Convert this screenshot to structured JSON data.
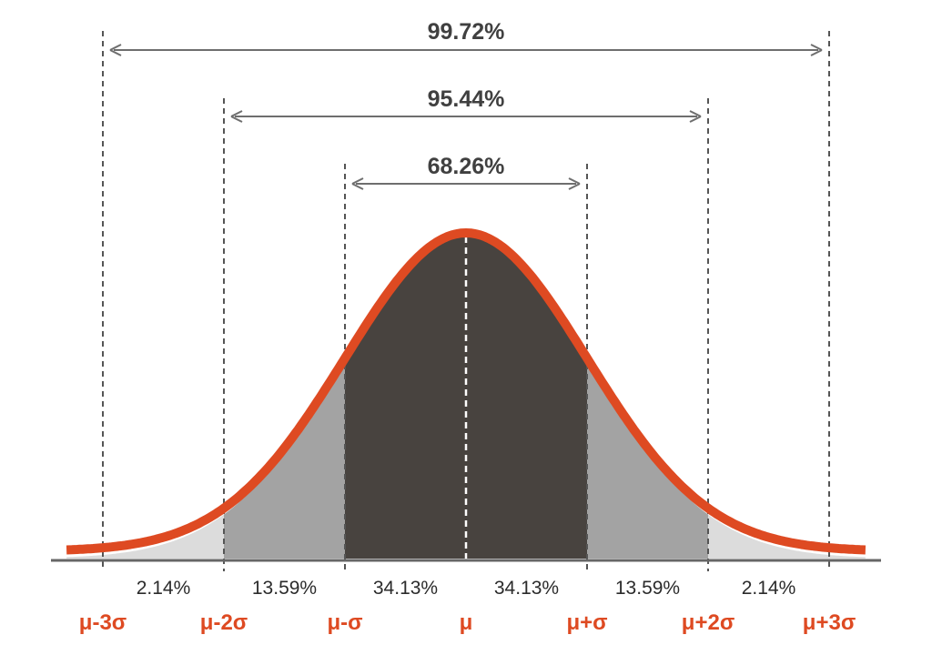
{
  "chart_data": {
    "type": "area",
    "title": "",
    "xlabel": "",
    "ylabel": "",
    "distribution": "normal",
    "xlim": [
      -3.3,
      3.3
    ],
    "tick_positions": [
      -3,
      -2,
      -1,
      0,
      1,
      2,
      3
    ],
    "tick_labels": [
      "μ-3σ",
      "μ-2σ",
      "μ-σ",
      "μ",
      "μ+σ",
      "μ+2σ",
      "μ+3σ"
    ],
    "regions": [
      {
        "from": -3,
        "to": -2,
        "percent_label": "2.14%",
        "shade": "light"
      },
      {
        "from": -2,
        "to": -1,
        "percent_label": "13.59%",
        "shade": "medium"
      },
      {
        "from": -1,
        "to": 0,
        "percent_label": "34.13%",
        "shade": "dark"
      },
      {
        "from": 0,
        "to": 1,
        "percent_label": "34.13%",
        "shade": "dark"
      },
      {
        "from": 1,
        "to": 2,
        "percent_label": "13.59%",
        "shade": "medium"
      },
      {
        "from": 2,
        "to": 3,
        "percent_label": "2.14%",
        "shade": "light"
      }
    ],
    "brackets": [
      {
        "from": -1,
        "to": 1,
        "label": "68.26%"
      },
      {
        "from": -2,
        "to": 2,
        "label": "95.44%"
      },
      {
        "from": -3,
        "to": 3,
        "label": "99.72%"
      }
    ]
  },
  "colors": {
    "curve": "#de4a22",
    "tick_label": "#de4a22",
    "dark_fill": "#48433f",
    "medium_fill": "#a3a3a3",
    "light_fill": "#dcdcdc",
    "axis": "#666666",
    "guide": "#555555",
    "arrow": "#6e6e6e"
  }
}
